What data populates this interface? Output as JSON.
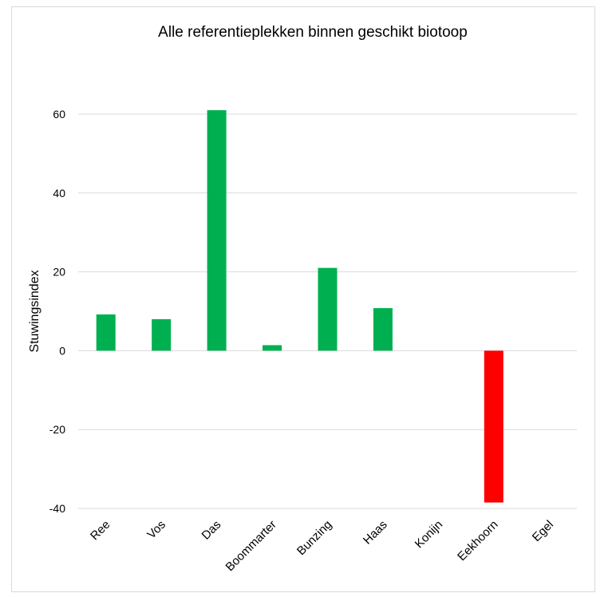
{
  "chart_data": {
    "type": "bar",
    "title": "Alle referentieplekken binnen geschikt biotoop",
    "xlabel": "",
    "ylabel": "Stuwingsindex",
    "categories": [
      "Ree",
      "Vos",
      "Das",
      "Boommarter",
      "Bunzing",
      "Haas",
      "Konijn",
      "Eekhoorn",
      "Egel"
    ],
    "values": [
      9.2,
      8.0,
      61.0,
      1.4,
      21.0,
      10.8,
      0,
      -38.5,
      0
    ],
    "ylim": [
      -40,
      60
    ],
    "yticks": [
      -40,
      -20,
      0,
      20,
      40,
      60
    ],
    "ytick_labels": [
      "-40",
      "-20",
      "0",
      "20",
      "40",
      "60"
    ],
    "grid": true,
    "legend": "none"
  },
  "colors": {
    "positive": "#00b050",
    "negative": "#ff0000",
    "grid": "#d9d9d9"
  }
}
